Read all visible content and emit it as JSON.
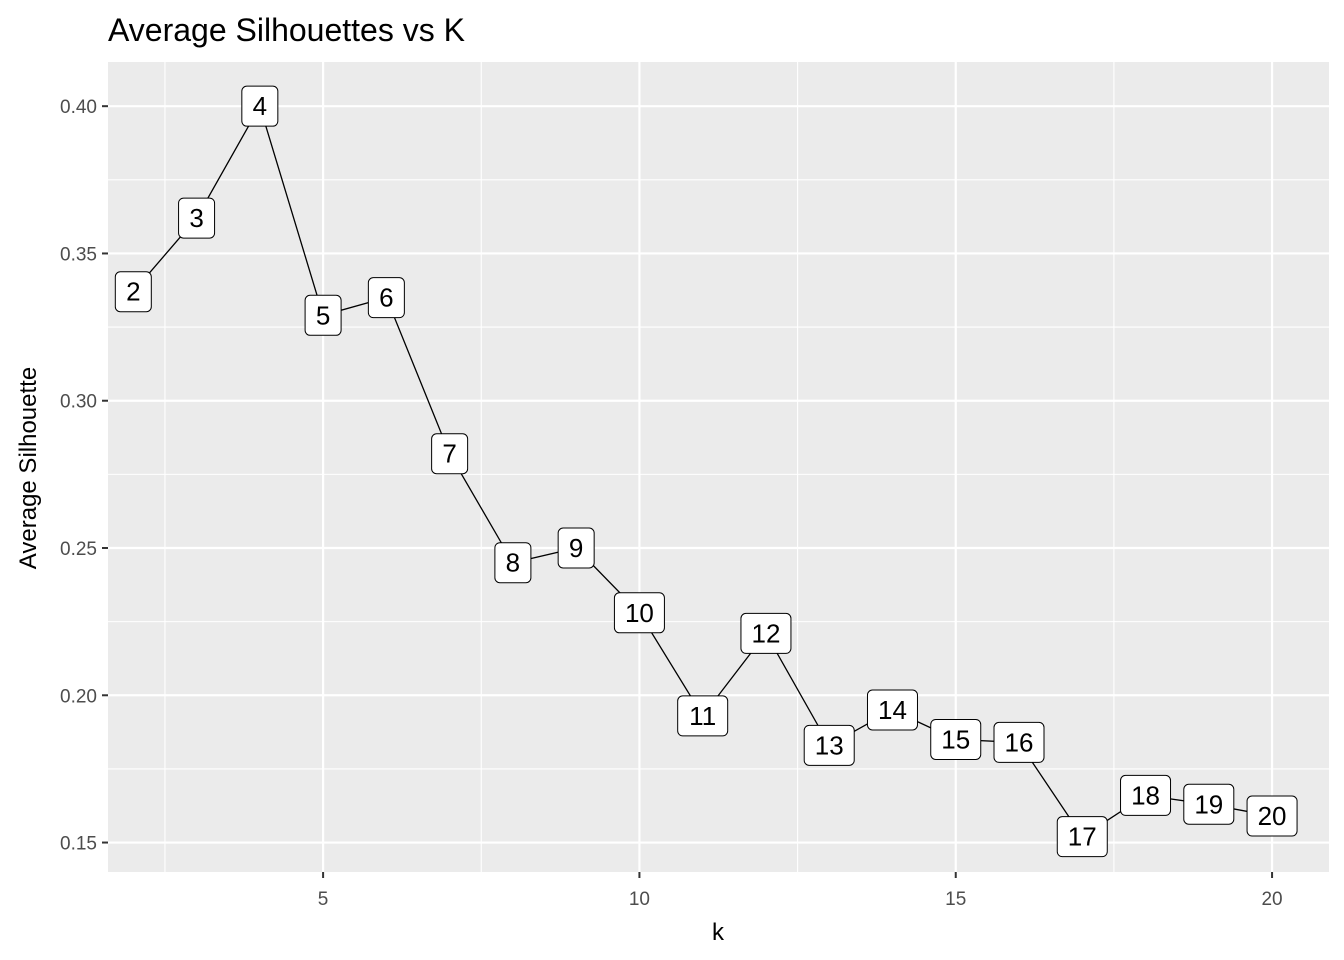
{
  "chart_data": {
    "type": "line",
    "title": "Average Silhouettes vs K",
    "xlabel": "k",
    "ylabel": "Average Silhouette",
    "xlim": [
      1.6,
      20.9
    ],
    "ylim": [
      0.14,
      0.415
    ],
    "x_ticks": [
      5,
      10,
      15,
      20
    ],
    "x_tick_labels": [
      "5",
      "10",
      "15",
      "20"
    ],
    "y_ticks": [
      0.15,
      0.2,
      0.25,
      0.3,
      0.35,
      0.4
    ],
    "y_tick_labels": [
      "0.15",
      "0.20",
      "0.25",
      "0.30",
      "0.35",
      "0.40"
    ],
    "grid": true,
    "legend": "none",
    "colors": {
      "panel": "#ebebeb",
      "grid": "#ffffff",
      "line": "#000000",
      "label_fill": "#ffffff"
    },
    "x": [
      2,
      3,
      4,
      5,
      6,
      7,
      8,
      9,
      10,
      11,
      12,
      13,
      14,
      15,
      16,
      17,
      18,
      19,
      20
    ],
    "values": [
      0.337,
      0.362,
      0.4,
      0.329,
      0.335,
      0.282,
      0.245,
      0.25,
      0.228,
      0.193,
      0.221,
      0.183,
      0.195,
      0.185,
      0.184,
      0.152,
      0.166,
      0.163,
      0.159
    ],
    "point_labels": [
      "2",
      "3",
      "4",
      "5",
      "6",
      "7",
      "8",
      "9",
      "10",
      "11",
      "12",
      "13",
      "14",
      "15",
      "16",
      "17",
      "18",
      "19",
      "20"
    ]
  }
}
